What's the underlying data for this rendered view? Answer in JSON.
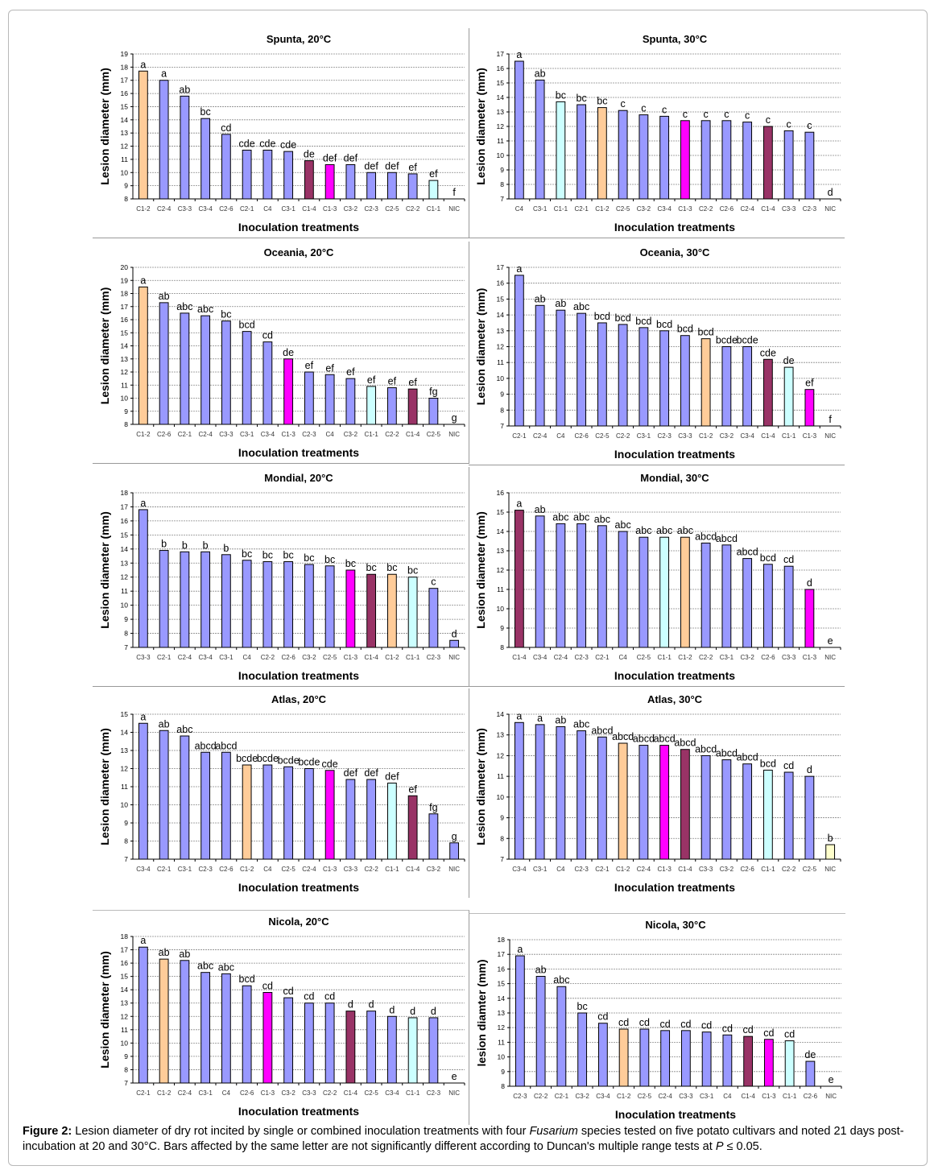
{
  "colors": {
    "default": "#9999ff",
    "C1-2": "#ffcc99",
    "C1-1": "#ccffff",
    "C1-3": "#ff00ff",
    "C1-4": "#993366",
    "stroke": "#000000",
    "grid": "#888888"
  },
  "caption": {
    "label": "Figure 2:",
    "text1": " Lesion diameter of dry rot incited by single or combined inoculation treatments with four ",
    "species": "Fusarium",
    "text2": "  species tested on five potato cultivars and noted 21 days post-incubation at 20 and 30°C. Bars affected by the same letter are not significantly different according to Duncan's multiple range tests at ",
    "p": "P",
    "text3": " ≤ 0.05."
  },
  "chart_data": [
    {
      "type": "bar",
      "title": "Spunta, 20°C",
      "xlabel": "Inoculation treatments",
      "ylabel": "Lesion diameter (mm)",
      "ylim": [
        8,
        19
      ],
      "grid": true,
      "categories": [
        "C1-2",
        "C2-4",
        "C3-3",
        "C3-4",
        "C2-6",
        "C2-1",
        "C4",
        "C3-1",
        "C1-4",
        "C1-3",
        "C3-2",
        "C2-3",
        "C2-5",
        "C2-2",
        "C1-1",
        "NIC"
      ],
      "values": [
        17.7,
        17.0,
        15.8,
        14.1,
        12.9,
        11.7,
        11.7,
        11.6,
        10.9,
        10.6,
        10.6,
        10.0,
        10.0,
        9.9,
        9.4,
        null
      ],
      "letters": [
        "a",
        "a",
        "ab",
        "bc",
        "cd",
        "cde",
        "cde",
        "cde",
        "de",
        "def",
        "def",
        "def",
        "def",
        "ef",
        "ef",
        "f"
      ]
    },
    {
      "type": "bar",
      "title": "Spunta, 30°C",
      "xlabel": "Inoculation treatments",
      "ylabel": "Lesion diameter (mm)",
      "ylim": [
        7,
        17
      ],
      "grid": true,
      "categories": [
        "C4",
        "C3-1",
        "C1-1",
        "C2-1",
        "C1-2",
        "C2-5",
        "C3-2",
        "C3-4",
        "C1-3",
        "C2-2",
        "C2-6",
        "C2-4",
        "C1-4",
        "C3-3",
        "C2-3",
        "NIC"
      ],
      "values": [
        16.5,
        15.2,
        13.7,
        13.5,
        13.3,
        13.1,
        12.8,
        12.7,
        12.4,
        12.4,
        12.4,
        12.3,
        12.0,
        11.7,
        11.6,
        null
      ],
      "letters": [
        "a",
        "ab",
        "bc",
        "bc",
        "bc",
        "c",
        "c",
        "c",
        "c",
        "c",
        "c",
        "c",
        "c",
        "c",
        "c",
        "d"
      ]
    },
    {
      "type": "bar",
      "title": "Oceania, 20°C",
      "xlabel": "Inoculation treatments",
      "ylabel": "Lesion diameter (mm)",
      "ylim": [
        8,
        20
      ],
      "grid": true,
      "categories": [
        "C1-2",
        "C2-6",
        "C2-1",
        "C2-4",
        "C3-3",
        "C3-1",
        "C3-4",
        "C1-3",
        "C2-3",
        "C4",
        "C3-2",
        "C1-1",
        "C2-2",
        "C1-4",
        "C2-5",
        "NIC"
      ],
      "values": [
        18.5,
        17.3,
        16.5,
        16.3,
        15.9,
        15.1,
        14.3,
        13.0,
        12.0,
        11.8,
        11.5,
        10.9,
        10.8,
        10.7,
        10.0,
        null
      ],
      "letters": [
        "a",
        "ab",
        "abc",
        "abc",
        "bc",
        "bcd",
        "cd",
        "de",
        "ef",
        "ef",
        "ef",
        "ef",
        "ef",
        "ef",
        "fg",
        "g"
      ]
    },
    {
      "type": "bar",
      "title": "Oceania, 30°C",
      "xlabel": "Inoculation treatments",
      "ylabel": "Lesion diameter (mm)",
      "ylim": [
        7,
        17
      ],
      "grid": true,
      "categories": [
        "C2-1",
        "C2-4",
        "C4",
        "C2-6",
        "C2-5",
        "C2-2",
        "C3-1",
        "C2-3",
        "C3-3",
        "C1-2",
        "C3-2",
        "C3-4",
        "C1-4",
        "C1-1",
        "C1-3",
        "NIC"
      ],
      "values": [
        16.5,
        14.6,
        14.3,
        14.1,
        13.5,
        13.4,
        13.2,
        13.0,
        12.7,
        12.5,
        12.0,
        12.0,
        11.2,
        10.7,
        9.3,
        null
      ],
      "letters": [
        "a",
        "ab",
        "ab",
        "abc",
        "bcd",
        "bcd",
        "bcd",
        "bcd",
        "bcd",
        "bcd",
        "bcde",
        "bcde",
        "cde",
        "de",
        "ef",
        "f"
      ]
    },
    {
      "type": "bar",
      "title": "Mondial, 20°C",
      "xlabel": "Inoculation treatments",
      "ylabel": "Lesion diameter (mm)",
      "ylim": [
        7,
        18
      ],
      "grid": true,
      "categories": [
        "C3-3",
        "C2-1",
        "C2-4",
        "C3-4",
        "C3-1",
        "C4",
        "C2-2",
        "C2-6",
        "C3-2",
        "C2-5",
        "C1-3",
        "C1-4",
        "C1-2",
        "C1-1",
        "C2-3",
        "NIC"
      ],
      "values": [
        16.8,
        13.9,
        13.8,
        13.8,
        13.6,
        13.2,
        13.1,
        13.1,
        12.9,
        12.8,
        12.5,
        12.2,
        12.2,
        12.0,
        11.2,
        7.5
      ],
      "letters": [
        "a",
        "b",
        "b",
        "b",
        "b",
        "bc",
        "bc",
        "bc",
        "bc",
        "bc",
        "bc",
        "bc",
        "bc",
        "bc",
        "c",
        "d"
      ]
    },
    {
      "type": "bar",
      "title": "Mondial, 30°C",
      "xlabel": "Inoculation treatments",
      "ylabel": "Lesion diameter (mm)",
      "ylim": [
        8,
        16
      ],
      "grid": true,
      "categories": [
        "C1-4",
        "C3-4",
        "C2-4",
        "C2-3",
        "C2-1",
        "C4",
        "C2-5",
        "C1-1",
        "C1-2",
        "C2-2",
        "C3-1",
        "C3-2",
        "C2-6",
        "C3-3",
        "C1-3",
        "NIC"
      ],
      "values": [
        15.1,
        14.8,
        14.4,
        14.4,
        14.3,
        14.0,
        13.7,
        13.7,
        13.7,
        13.4,
        13.3,
        12.6,
        12.3,
        12.2,
        11.0,
        null
      ],
      "letters": [
        "a",
        "ab",
        "abc",
        "abc",
        "abc",
        "abc",
        "abc",
        "abc",
        "abc",
        "abcd",
        "abcd",
        "abcd",
        "bcd",
        "cd",
        "d",
        "e"
      ]
    },
    {
      "type": "bar",
      "title": "Atlas, 20°C",
      "xlabel": "Inoculation treatments",
      "ylabel": "Lesion diameter (mm)",
      "ylim": [
        7,
        15
      ],
      "grid": true,
      "categories": [
        "C3-4",
        "C2-1",
        "C3-1",
        "C2-3",
        "C2-6",
        "C1-2",
        "C4",
        "C2-5",
        "C2-4",
        "C1-3",
        "C3-3",
        "C2-2",
        "C1-1",
        "C1-4",
        "C3-2",
        "NIC"
      ],
      "values": [
        14.5,
        14.1,
        13.8,
        12.9,
        12.9,
        12.2,
        12.2,
        12.1,
        12.0,
        11.9,
        11.4,
        11.4,
        11.2,
        10.5,
        9.5,
        7.9
      ],
      "letters": [
        "a",
        "ab",
        "abc",
        "abcd",
        "abcd",
        "bcde",
        "bcde",
        "bcde",
        "bcde",
        "cde",
        "def",
        "def",
        "def",
        "ef",
        "fg",
        "g"
      ]
    },
    {
      "type": "bar",
      "title": "Atlas, 30°C",
      "xlabel": "Inoculation treatments",
      "ylabel": "Lesion diameter (mm)",
      "ylim": [
        7,
        14
      ],
      "grid": true,
      "categories": [
        "C3-4",
        "C3-1",
        "C4",
        "C2-3",
        "C2-1",
        "C1-2",
        "C2-4",
        "C1-3",
        "C1-4",
        "C3-3",
        "C3-2",
        "C2-6",
        "C1-1",
        "C2-2",
        "C2-5",
        "NIC"
      ],
      "values": [
        13.6,
        13.5,
        13.4,
        13.2,
        12.9,
        12.6,
        12.5,
        12.5,
        12.3,
        12.0,
        11.8,
        11.6,
        11.3,
        11.2,
        11.0,
        7.7
      ],
      "letters": [
        "a",
        "a",
        "ab",
        "abc",
        "abcd",
        "abcd",
        "abcd",
        "abcd",
        "abcd",
        "abcd",
        "abcd",
        "abcd",
        "bcd",
        "cd",
        "d",
        "b"
      ],
      "color_overrides": {
        "NIC": "#ffffcc"
      }
    },
    {
      "type": "bar",
      "title": "Nicola, 20°C",
      "xlabel": "Inoculation treatments",
      "ylabel": "Lesion diameter (mm)",
      "ylim": [
        7,
        18
      ],
      "grid": true,
      "categories": [
        "C2-1",
        "C1-2",
        "C2-4",
        "C3-1",
        "C4",
        "C2-6",
        "C1-3",
        "C3-2",
        "C3-3",
        "C2-2",
        "C1-4",
        "C2-5",
        "C3-4",
        "C1-1",
        "C2-3",
        "NIC"
      ],
      "values": [
        17.2,
        16.3,
        16.2,
        15.3,
        15.2,
        14.3,
        13.8,
        13.4,
        13.0,
        13.0,
        12.4,
        12.4,
        12.0,
        11.9,
        11.9,
        null
      ],
      "letters": [
        "a",
        "ab",
        "ab",
        "abc",
        "abc",
        "bcd",
        "cd",
        "cd",
        "cd",
        "cd",
        "d",
        "d",
        "d",
        "d",
        "d",
        "e"
      ]
    },
    {
      "type": "bar",
      "title": "Nicola, 30°C",
      "xlabel": "Inoculation treatments",
      "ylabel": "lesion diamter (mm)",
      "ylim": [
        8,
        18
      ],
      "grid": true,
      "categories": [
        "C2-3",
        "C2-2",
        "C2-1",
        "C3-2",
        "C3-4",
        "C1-2",
        "C2-5",
        "C2-4",
        "C3-3",
        "C3-1",
        "C4",
        "C1-4",
        "C1-3",
        "C1-1",
        "C2-6",
        "NIC"
      ],
      "values": [
        16.9,
        15.5,
        14.8,
        13.0,
        12.3,
        11.9,
        11.9,
        11.8,
        11.8,
        11.7,
        11.5,
        11.4,
        11.2,
        11.1,
        9.7,
        null
      ],
      "letters": [
        "a",
        "ab",
        "abc",
        "bc",
        "cd",
        "cd",
        "cd",
        "cd",
        "cd",
        "cd",
        "cd",
        "cd",
        "cd",
        "cd",
        "de",
        "e"
      ]
    }
  ]
}
